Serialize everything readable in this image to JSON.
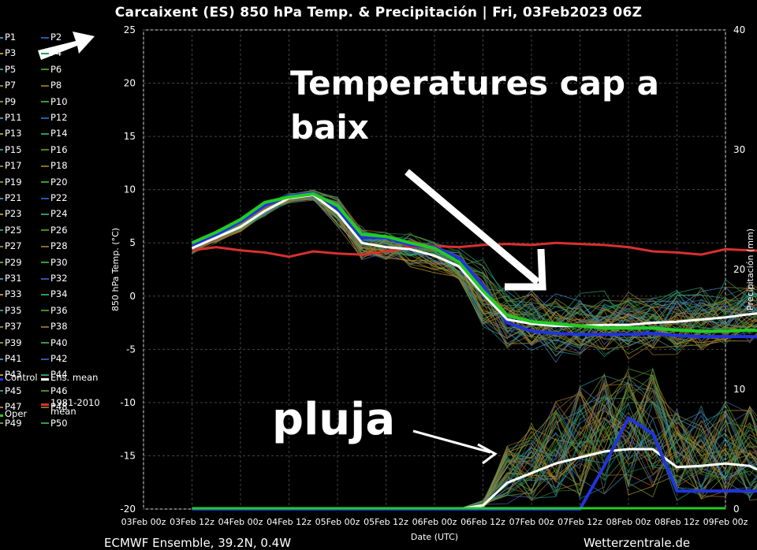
{
  "title": "Carcaixent  (ES)  850 hPa Temp. & Precipitación | Fri, 03Feb2023 06Z",
  "footer": {
    "left": "ECMWF Ensemble, 39.2N, 0.4W",
    "right": "Wetterzentrale.de"
  },
  "annotations": {
    "temperature": "Temperatures  cap a baix",
    "rain": "pluja"
  },
  "legend": {
    "members": [
      "P1",
      "P2",
      "P3",
      "P4",
      "P5",
      "P6",
      "P7",
      "P8",
      "P9",
      "P10",
      "P11",
      "P12",
      "P13",
      "P14",
      "P15",
      "P16",
      "P17",
      "P18",
      "P19",
      "P20",
      "P21",
      "P22",
      "P23",
      "P24",
      "P25",
      "P26",
      "P27",
      "P28",
      "P29",
      "P30",
      "P31",
      "P32",
      "P33",
      "P34",
      "P35",
      "P36",
      "P37",
      "P38",
      "P39",
      "P40",
      "P41",
      "P42",
      "P43",
      "P44",
      "P45",
      "P46",
      "P47",
      "P48",
      "P49",
      "P50"
    ],
    "control": "Control",
    "ens_mean": "Ens. mean",
    "climate": "1981-2010\nmean",
    "oper": "Oper"
  },
  "colors": {
    "control": "#2233dd",
    "ens_mean": "#ffffff",
    "climate": "#d83030",
    "oper": "#22cc22"
  },
  "chart_data": {
    "type": "line",
    "ylabel": "850 hPa Temp. (°C)",
    "y2label": "Precipitación (mm)",
    "xlabel": "Date (UTC)",
    "ylim": [
      -20,
      25
    ],
    "y2lim": [
      0,
      40
    ],
    "yticks": [
      25,
      20,
      15,
      10,
      5,
      0,
      -5,
      -10,
      -15,
      -20
    ],
    "y2ticks": [
      40,
      30,
      20,
      10,
      0
    ],
    "x_tick_labels": [
      "03Feb 00z",
      "03Feb 12z",
      "04Feb 00z",
      "04Feb 12z",
      "05Feb 00z",
      "05Feb 12z",
      "06Feb 00z",
      "06Feb 12z",
      "07Feb 00z",
      "07Feb 12z",
      "08Feb 00z",
      "08Feb 12z",
      "09Feb 00z"
    ],
    "grid": true,
    "legend_position": "left",
    "x_step_hours": 6,
    "x_start_index": 2,
    "series": [
      {
        "name": "Control",
        "values": [
          4.8,
          5.8,
          7,
          8.5,
          9.4,
          9.7,
          8.2,
          5.5,
          5.5,
          4.8,
          4.6,
          3.6,
          1,
          -2.5,
          -3.3,
          -3.5,
          -3.6,
          -3.6,
          -3.6,
          -3.5,
          -3.7,
          -3.8,
          -3.8,
          -3.8,
          -3.9,
          -4
        ]
      },
      {
        "name": "Ens. mean",
        "values": [
          4.5,
          5.5,
          6.5,
          8,
          9.2,
          9.5,
          7.8,
          5,
          4.6,
          4.4,
          3.8,
          2.8,
          0.2,
          -2.2,
          -2.6,
          -2.8,
          -2.8,
          -2.7,
          -2.7,
          -2.5,
          -2.4,
          -2.2,
          -2,
          -1.7,
          -1.5,
          -1.5
        ]
      },
      {
        "name": "Oper",
        "values": [
          5,
          6,
          7.2,
          8.8,
          9.3,
          9.6,
          8.5,
          5.8,
          5.6,
          5,
          4.5,
          3.2,
          0.5,
          -1.8,
          -2.4,
          -2.6,
          -2.8,
          -3,
          -3,
          -3,
          -3.2,
          -3.3,
          -3.3,
          -3.2,
          -3.3,
          -3.4
        ]
      },
      {
        "name": "1981-2010 mean",
        "values": [
          4.3,
          4.6,
          4.3,
          4.1,
          3.7,
          4.2,
          4,
          3.9,
          4.2,
          4.6,
          4.7,
          4.6,
          4.8,
          4.9,
          4.8,
          5,
          4.9,
          4.8,
          4.6,
          4.2,
          4.1,
          3.9,
          4.4,
          4.3,
          4.2,
          4.4
        ]
      }
    ],
    "precip_series": [
      {
        "name": "Ens. mean",
        "values": [
          0,
          0,
          0,
          0,
          0,
          0,
          0,
          0,
          0,
          0,
          0,
          0,
          0.3,
          2.2,
          3,
          3.8,
          4.3,
          4.8,
          5,
          5,
          3.5,
          3.6,
          3.8,
          3.6,
          2.6,
          1.8
        ]
      },
      {
        "name": "Control",
        "values": [
          0,
          0,
          0,
          0,
          0,
          0,
          0,
          0,
          0,
          0,
          0,
          0,
          0,
          0,
          0,
          0,
          0,
          3.6,
          7.6,
          6.3,
          1.5,
          1.5,
          1.5,
          1.5,
          1.5,
          1.5
        ]
      }
    ]
  }
}
